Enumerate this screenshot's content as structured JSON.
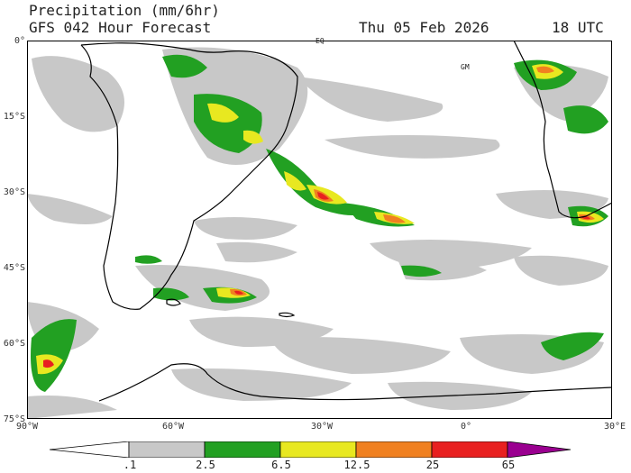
{
  "header": {
    "title": "Precipitation (mm/6hr)",
    "model": "GFS 042 Hour Forecast",
    "date": "Thu 05 Feb 2026",
    "time": "18 UTC"
  },
  "axes": {
    "lat_labels": [
      "0°",
      "15°S",
      "30°S",
      "45°S",
      "60°S",
      "75°S"
    ],
    "lon_labels": [
      "90°W",
      "60°W",
      "30°W",
      "0°",
      "30°E"
    ]
  },
  "map_labels": {
    "eq": "EQ",
    "gm": "GM"
  },
  "colorbar": {
    "labels": [
      ".1",
      "2.5",
      "6.5",
      "12.5",
      "25",
      "65"
    ],
    "colors": [
      "#ffffff",
      "#c8c8c8",
      "#22a022",
      "#e8e820",
      "#f08020",
      "#e82020",
      "#9a0090"
    ]
  },
  "palette": {
    "light": "#c8c8c8",
    "green": "#22a022",
    "yellow": "#e8e820",
    "orange": "#f08020",
    "red": "#e82020",
    "land_outline": "#000000"
  }
}
